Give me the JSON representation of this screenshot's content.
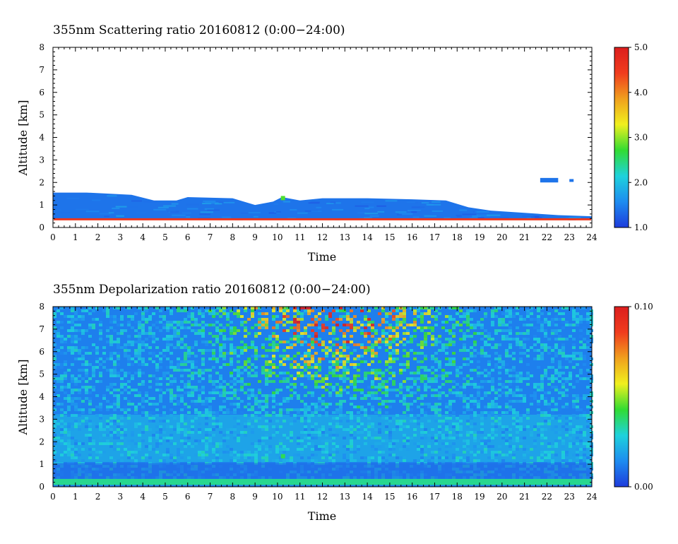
{
  "chart_data": [
    {
      "type": "heatmap",
      "title": "355nm Scattering ratio  20160812 (0:00−24:00)",
      "xlabel": "Time",
      "ylabel": "Altitude [km]",
      "xlim": [
        0,
        24
      ],
      "ylim": [
        0,
        8
      ],
      "x_ticks": [
        "0",
        "1",
        "2",
        "3",
        "4",
        "5",
        "6",
        "7",
        "8",
        "9",
        "10",
        "11",
        "12",
        "13",
        "14",
        "15",
        "16",
        "17",
        "18",
        "19",
        "20",
        "21",
        "22",
        "23",
        "24"
      ],
      "y_ticks": [
        "0",
        "1",
        "2",
        "3",
        "4",
        "5",
        "6",
        "7",
        "8"
      ],
      "colorbar": {
        "range": [
          1.0,
          5.0
        ],
        "tick_labels": [
          "1.0",
          "2.0",
          "3.0",
          "4.0",
          "5.0"
        ],
        "colors": [
          "#1e3cdc",
          "#1e8cf0",
          "#1ed2dc",
          "#32dc32",
          "#f0f01e",
          "#f0a01e",
          "#f03c1e",
          "#dc1e1e"
        ]
      },
      "features": {
        "aerosol_layer_top_km": [
          [
            0,
            1.55
          ],
          [
            1.5,
            1.55
          ],
          [
            3.5,
            1.45
          ],
          [
            4.5,
            1.2
          ],
          [
            5.5,
            1.2
          ],
          [
            6,
            1.35
          ],
          [
            8,
            1.3
          ],
          [
            9,
            1.0
          ],
          [
            9.8,
            1.15
          ],
          [
            10.2,
            1.35
          ],
          [
            11,
            1.2
          ],
          [
            12,
            1.3
          ],
          [
            14,
            1.3
          ],
          [
            16,
            1.25
          ],
          [
            17.5,
            1.2
          ],
          [
            18.5,
            0.9
          ],
          [
            19.5,
            0.75
          ],
          [
            21,
            0.65
          ],
          [
            22.5,
            0.55
          ],
          [
            24,
            0.5
          ]
        ],
        "aerosol_layer_bottom_km": 0.38,
        "near_surface_value": 4.5,
        "layer_value": 1.4,
        "isolated_patch": {
          "x": [
            21.7,
            22.5
          ],
          "y": [
            2.0,
            2.2
          ],
          "value": 1.4
        }
      }
    },
    {
      "type": "heatmap",
      "title": "355nm Depolarization ratio  20160812 (0:00−24:00)",
      "xlabel": "Time",
      "ylabel": "Altitude [km]",
      "xlim": [
        0,
        24
      ],
      "ylim": [
        0,
        8
      ],
      "x_ticks": [
        "0",
        "1",
        "2",
        "3",
        "4",
        "5",
        "6",
        "7",
        "8",
        "9",
        "10",
        "11",
        "12",
        "13",
        "14",
        "15",
        "16",
        "17",
        "18",
        "19",
        "20",
        "21",
        "22",
        "23",
        "24"
      ],
      "y_ticks": [
        "0",
        "1",
        "2",
        "3",
        "4",
        "5",
        "6",
        "7",
        "8"
      ],
      "colorbar": {
        "range": [
          0.0,
          0.1
        ],
        "tick_labels": [
          "0.00",
          "0.10"
        ],
        "colors": [
          "#1e3cdc",
          "#1e8cf0",
          "#1ed2dc",
          "#32dc32",
          "#f0f01e",
          "#f0a01e",
          "#f03c1e",
          "#dc1e1e"
        ]
      },
      "features": {
        "background_value": 0.012,
        "noise_peak_time_h": 12.5,
        "noise_halfwidth_h": 4.5,
        "noise_max_value": 0.1,
        "noise_onset_km": 3.0,
        "near_surface_value": 0.035
      }
    }
  ]
}
